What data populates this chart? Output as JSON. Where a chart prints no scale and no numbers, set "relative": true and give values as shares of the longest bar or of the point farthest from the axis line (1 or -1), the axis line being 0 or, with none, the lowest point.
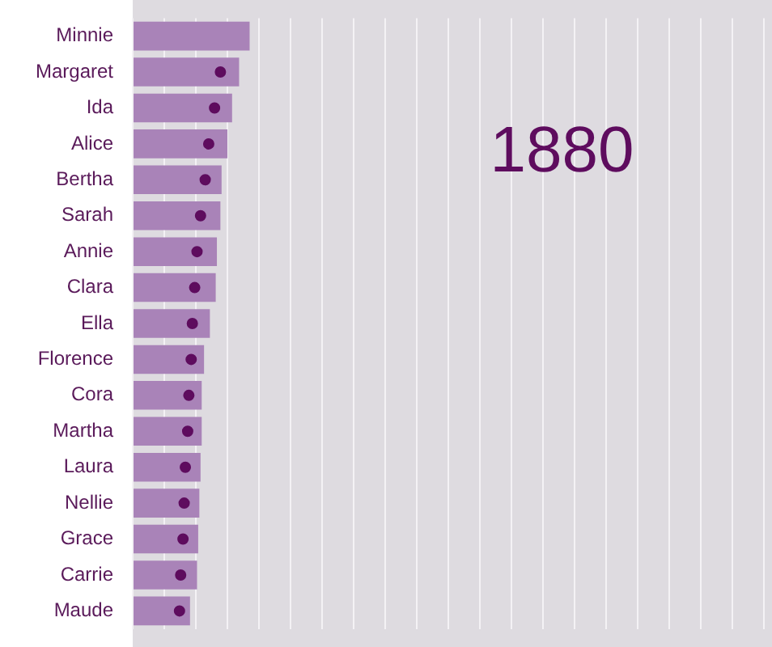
{
  "chart_data": {
    "type": "bar",
    "orientation": "horizontal",
    "relative": true,
    "grid": "x",
    "legend": false,
    "marker": "circle",
    "categories": [
      "Minnie",
      "Margaret",
      "Ida",
      "Alice",
      "Bertha",
      "Sarah",
      "Annie",
      "Clara",
      "Ella",
      "Florence",
      "Cora",
      "Martha",
      "Laura",
      "Nellie",
      "Grace",
      "Carrie",
      "Maude"
    ],
    "series": [
      {
        "color": "#a983b8",
        "values": [
          1,
          0.91,
          0.85,
          0.81,
          0.76,
          0.75,
          0.72,
          0.71,
          0.66,
          0.61,
          0.59,
          0.59,
          0.58,
          0.57,
          0.56,
          0.55,
          0.49
        ]
      },
      {
        "type": "scatter",
        "color": "#5e0c5e",
        "values": [
          null,
          0.75,
          0.7,
          0.65,
          0.62,
          0.58,
          0.55,
          0.53,
          0.51,
          0.5,
          0.48,
          0.47,
          0.45,
          0.44,
          0.43,
          0.41,
          0.4
        ]
      }
    ],
    "annotations": [
      "1880"
    ]
  }
}
